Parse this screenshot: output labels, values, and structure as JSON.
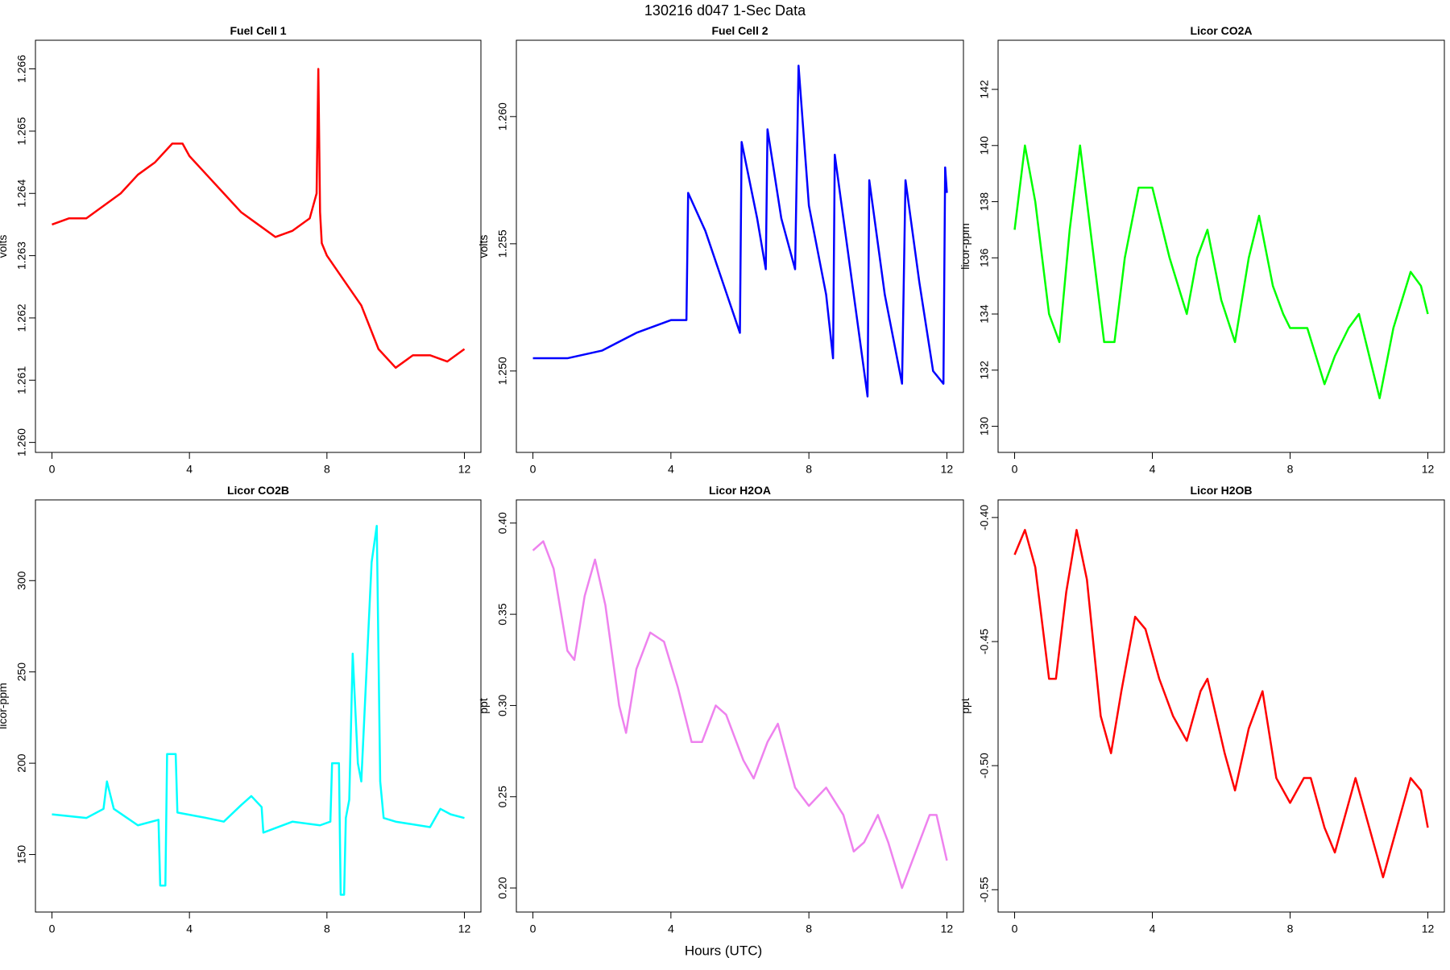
{
  "title": "130216   d047   1-Sec Data",
  "xlabel": "Hours (UTC)",
  "chart_data": [
    {
      "type": "line",
      "title": "Fuel Cell 1",
      "ylabel": "volts",
      "x": [
        0,
        0.5,
        1,
        1.5,
        2,
        2.5,
        3,
        3.5,
        3.8,
        4,
        4.5,
        5,
        5.5,
        6,
        6.5,
        7,
        7.5,
        7.7,
        7.75,
        7.8,
        7.85,
        8,
        8.5,
        9,
        9.5,
        10,
        10.5,
        11,
        11.5,
        12
      ],
      "series": [
        {
          "color": "#ff0000",
          "values": [
            1.2635,
            1.2636,
            1.2636,
            1.2638,
            1.264,
            1.2643,
            1.2645,
            1.2648,
            1.2648,
            1.2646,
            1.2643,
            1.264,
            1.2637,
            1.2635,
            1.2633,
            1.2634,
            1.2636,
            1.264,
            1.266,
            1.2637,
            1.2632,
            1.263,
            1.2626,
            1.2622,
            1.2615,
            1.2612,
            1.2614,
            1.2614,
            1.2613,
            1.2615
          ]
        }
      ],
      "xlim": [
        -0.48,
        12.48
      ],
      "xticks": [
        0,
        4,
        8,
        12
      ],
      "ylim": [
        1.25984,
        1.26646
      ],
      "yticks": [
        {
          "value": 1.26,
          "label": "1.260"
        },
        1.261,
        1.262,
        1.263,
        1.264,
        1.265,
        1.266
      ]
    },
    {
      "type": "line",
      "title": "Fuel Cell 2",
      "ylabel": "volts",
      "x": [
        0,
        1,
        2,
        3,
        4,
        4.45,
        4.5,
        5,
        5.5,
        6,
        6.05,
        6.5,
        6.75,
        6.8,
        7.2,
        7.6,
        7.7,
        8,
        8.5,
        8.7,
        8.75,
        9.2,
        9.7,
        9.75,
        10.2,
        10.7,
        10.8,
        11.2,
        11.6,
        11.9,
        11.95,
        12
      ],
      "series": [
        {
          "color": "#0000ff",
          "values": [
            1.2505,
            1.2505,
            1.2508,
            1.2515,
            1.252,
            1.252,
            1.257,
            1.2555,
            1.2535,
            1.2515,
            1.259,
            1.256,
            1.254,
            1.2595,
            1.256,
            1.254,
            1.262,
            1.2565,
            1.253,
            1.2505,
            1.2585,
            1.254,
            1.249,
            1.2575,
            1.253,
            1.2495,
            1.2575,
            1.2535,
            1.25,
            1.2495,
            1.258,
            1.257
          ]
        }
      ],
      "xlim": [
        -0.48,
        12.48
      ],
      "xticks": [
        0,
        4,
        8,
        12
      ],
      "ylim": [
        1.2468,
        1.263
      ],
      "yticks": [
        {
          "value": 1.25,
          "label": "1.250"
        },
        1.255,
        {
          "value": 1.26,
          "label": "1.260"
        }
      ]
    },
    {
      "type": "line",
      "title": "Licor CO2A",
      "ylabel": "licor-ppm",
      "x": [
        0,
        0.3,
        0.6,
        1,
        1.3,
        1.6,
        1.9,
        2.2,
        2.6,
        2.9,
        3.2,
        3.6,
        4,
        4.5,
        5,
        5.3,
        5.6,
        6,
        6.4,
        6.8,
        7.1,
        7.5,
        7.8,
        8,
        8.5,
        9,
        9.3,
        9.7,
        10,
        10.6,
        11,
        11.5,
        11.8,
        12
      ],
      "series": [
        {
          "color": "#00ff00",
          "values": [
            137,
            140,
            138,
            134,
            133,
            137,
            140,
            137,
            133,
            133,
            136,
            138.5,
            138.5,
            136,
            134,
            136,
            137,
            134.5,
            133,
            136,
            137.5,
            135,
            134,
            133.5,
            133.5,
            131.5,
            132.5,
            133.5,
            134,
            131,
            133.5,
            135.5,
            135,
            134
          ]
        }
      ],
      "xlim": [
        -0.48,
        12.48
      ],
      "xticks": [
        0,
        4,
        8,
        12
      ],
      "ylim": [
        129.07,
        143.75
      ],
      "yticks": [
        130,
        132,
        134,
        136,
        138,
        140,
        142
      ]
    },
    {
      "type": "line",
      "title": "Licor CO2B",
      "ylabel": "licor-ppm",
      "x": [
        0,
        1,
        1.5,
        1.6,
        1.8,
        2.5,
        3.1,
        3.15,
        3.3,
        3.35,
        3.6,
        3.65,
        4.5,
        5,
        5.5,
        5.8,
        6.1,
        6.15,
        7,
        7.8,
        8.1,
        8.15,
        8.35,
        8.4,
        8.5,
        8.55,
        8.65,
        8.75,
        8.9,
        9,
        9.3,
        9.45,
        9.55,
        9.65,
        10,
        11,
        11.3,
        11.6,
        12
      ],
      "series": [
        {
          "color": "#00ffff",
          "values": [
            172,
            170,
            175,
            190,
            175,
            166,
            169,
            133,
            133,
            205,
            205,
            173,
            170,
            168,
            177,
            182,
            176,
            162,
            168,
            166,
            168,
            200,
            200,
            128,
            128,
            170,
            180,
            260,
            200,
            190,
            310,
            330,
            190,
            170,
            168,
            165,
            175,
            172,
            170
          ]
        }
      ],
      "xlim": [
        -0.48,
        12.48
      ],
      "xticks": [
        0,
        4,
        8,
        12
      ],
      "ylim": [
        118.5,
        344.2
      ],
      "yticks": [
        150,
        200,
        250,
        300
      ]
    },
    {
      "type": "line",
      "title": "Licor H2OA",
      "ylabel": "ppt",
      "x": [
        0,
        0.3,
        0.6,
        1,
        1.2,
        1.5,
        1.8,
        2.1,
        2.5,
        2.7,
        3,
        3.4,
        3.8,
        4.2,
        4.6,
        4.9,
        5.3,
        5.6,
        6.1,
        6.4,
        6.8,
        7.1,
        7.6,
        8,
        8.5,
        9,
        9.3,
        9.6,
        10,
        10.3,
        10.7,
        11,
        11.5,
        11.7,
        12
      ],
      "series": [
        {
          "color": "#ee82ee",
          "values": [
            0.385,
            0.39,
            0.375,
            0.33,
            0.325,
            0.36,
            0.38,
            0.355,
            0.3,
            0.285,
            0.32,
            0.34,
            0.335,
            0.31,
            0.28,
            0.28,
            0.3,
            0.295,
            0.27,
            0.26,
            0.28,
            0.29,
            0.255,
            0.245,
            0.255,
            0.24,
            0.22,
            0.225,
            0.24,
            0.225,
            0.2,
            0.215,
            0.24,
            0.24,
            0.215
          ]
        }
      ],
      "xlim": [
        -0.48,
        12.48
      ],
      "xticks": [
        0,
        4,
        8,
        12
      ],
      "ylim": [
        0.1868,
        0.4127
      ],
      "yticks": [
        {
          "value": 0.2,
          "label": "0.20"
        },
        0.25,
        {
          "value": 0.3,
          "label": "0.30"
        },
        0.35,
        {
          "value": 0.4,
          "label": "0.40"
        }
      ]
    },
    {
      "type": "line",
      "title": "Licor H2OB",
      "ylabel": "ppt",
      "x": [
        0,
        0.3,
        0.6,
        1,
        1.2,
        1.5,
        1.8,
        2.1,
        2.5,
        2.8,
        3.1,
        3.5,
        3.8,
        4.2,
        4.6,
        5,
        5.4,
        5.6,
        6.1,
        6.4,
        6.8,
        7.2,
        7.6,
        8,
        8.4,
        8.6,
        9,
        9.3,
        9.6,
        9.9,
        10.3,
        10.7,
        11,
        11.5,
        11.8,
        12
      ],
      "series": [
        {
          "color": "#ff0000",
          "values": [
            -0.415,
            -0.405,
            -0.42,
            -0.465,
            -0.465,
            -0.43,
            -0.405,
            -0.425,
            -0.48,
            -0.495,
            -0.47,
            -0.44,
            -0.445,
            -0.465,
            -0.48,
            -0.49,
            -0.47,
            -0.465,
            -0.495,
            -0.51,
            -0.485,
            -0.47,
            -0.505,
            -0.515,
            -0.505,
            -0.505,
            -0.525,
            -0.535,
            -0.52,
            -0.505,
            -0.525,
            -0.545,
            -0.53,
            -0.505,
            -0.51,
            -0.525
          ]
        }
      ],
      "xlim": [
        -0.48,
        12.48
      ],
      "xticks": [
        0,
        4,
        8,
        12
      ],
      "ylim": [
        -0.559,
        -0.3929
      ],
      "yticks": [
        -0.55,
        {
          "value": -0.5,
          "label": "-0.50"
        },
        -0.45,
        {
          "value": -0.4,
          "label": "-0.40"
        }
      ]
    }
  ]
}
